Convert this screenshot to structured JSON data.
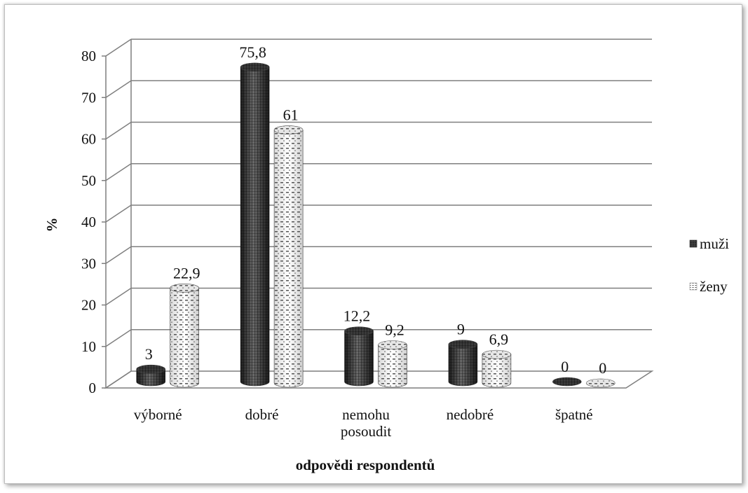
{
  "chart_data": {
    "type": "bar",
    "xlabel": "odpovědi respondentů",
    "ylabel": "%",
    "ylim": [
      0,
      80
    ],
    "yticks": [
      "0",
      "10",
      "20",
      "30",
      "40",
      "50",
      "60",
      "70",
      "80"
    ],
    "grid": true,
    "legend_position": "right",
    "categories": [
      [
        "výborné"
      ],
      [
        "dobré"
      ],
      [
        "nemohu",
        "posoudit"
      ],
      [
        "nedobré"
      ],
      [
        "špatné"
      ]
    ],
    "series": [
      {
        "name": "muži",
        "values": [
          3,
          75.8,
          12.2,
          9,
          0
        ],
        "labels": [
          "3",
          "75,8",
          "12,2",
          "9",
          "0"
        ],
        "pattern": "dark-hatched"
      },
      {
        "name": "ženy",
        "values": [
          22.9,
          61,
          9.2,
          6.9,
          0
        ],
        "labels": [
          "22,9",
          "61",
          "9,2",
          "6,9",
          "0"
        ],
        "pattern": "light-dotted"
      }
    ]
  }
}
